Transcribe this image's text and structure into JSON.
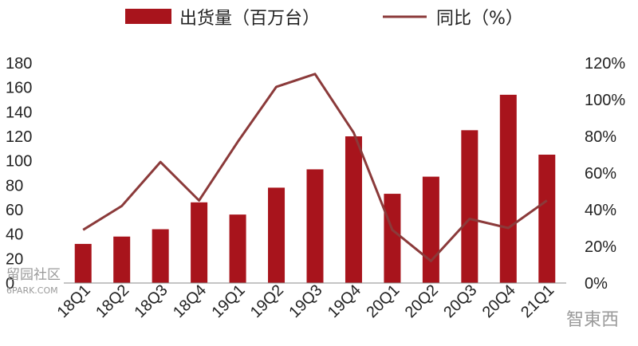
{
  "chart_data": {
    "type": "bar",
    "categories": [
      "18Q1",
      "18Q2",
      "18Q3",
      "18Q4",
      "19Q1",
      "19Q2",
      "19Q3",
      "19Q4",
      "20Q1",
      "20Q2",
      "20Q3",
      "20Q4",
      "21Q1"
    ],
    "series": [
      {
        "name": "出货量（百万台）",
        "type": "bar",
        "axis": "left",
        "values": [
          32,
          38,
          44,
          66,
          56,
          78,
          93,
          120,
          73,
          87,
          125,
          154,
          105
        ]
      },
      {
        "name": "同比（%）",
        "type": "line",
        "axis": "right",
        "values": [
          29,
          42,
          66,
          45,
          77,
          107,
          114,
          82,
          29,
          12,
          35,
          30,
          45
        ]
      }
    ],
    "y_left": {
      "ylim": [
        0,
        180
      ],
      "ticks": [
        "0",
        "20",
        "40",
        "60",
        "80",
        "100",
        "120",
        "140",
        "160",
        "180"
      ]
    },
    "y_right": {
      "ylim": [
        0,
        120
      ],
      "ticks": [
        "0%",
        "20%",
        "40%",
        "60%",
        "80%",
        "100%",
        "120%"
      ]
    },
    "grid": false,
    "legend": "top-center",
    "colors": {
      "bar": "#a8141c",
      "line": "#8b3a3a"
    }
  },
  "watermarks": {
    "left_line1": "留园社区",
    "left_line2": "6PARK.COM",
    "right": "智東西"
  }
}
